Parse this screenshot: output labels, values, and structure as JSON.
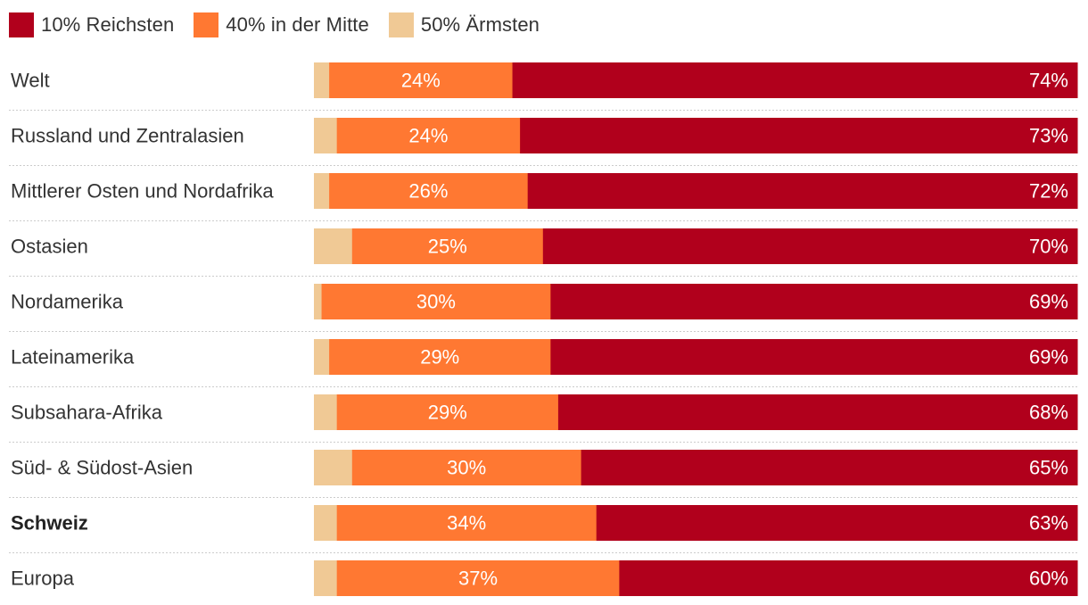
{
  "chart_data": {
    "type": "bar",
    "orientation": "horizontal",
    "stacked": true,
    "normalized": true,
    "xlim": [
      0,
      100
    ],
    "unit": "%",
    "legend_position": "top-left",
    "legend": [
      "10% Reichsten",
      "40% in der Mitte",
      "50% Ärmsten"
    ],
    "categories": [
      "Welt",
      "Russland und Zentralasien",
      "Mittlerer Osten und Nordafrika",
      "Ostasien",
      "Nordamerika",
      "Lateinamerika",
      "Subsahara-Afrika",
      "Süd- & Südost-Asien",
      "Schweiz",
      "Europa"
    ],
    "highlight_category": "Schweiz",
    "series": [
      {
        "name": "50% Ärmsten",
        "color": "#f0c995",
        "values": [
          2,
          3,
          2,
          5,
          1,
          2,
          3,
          5,
          3,
          3
        ],
        "labeled": false
      },
      {
        "name": "40% in der Mitte",
        "color": "#ff7832",
        "values": [
          24,
          24,
          26,
          25,
          30,
          29,
          29,
          30,
          34,
          37
        ],
        "labeled": true
      },
      {
        "name": "10% Reichsten",
        "color": "#b1001c",
        "values": [
          74,
          73,
          72,
          70,
          69,
          69,
          68,
          65,
          63,
          60
        ],
        "labeled": true
      }
    ]
  }
}
